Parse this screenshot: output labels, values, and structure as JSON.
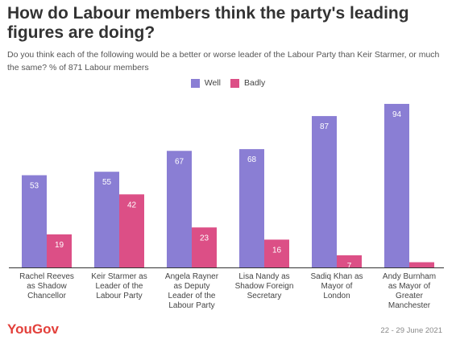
{
  "title": "How do Labour members think the party's leading figures are doing?",
  "subtitle": "Do you think each of the following would be a better or worse leader of the Labour Party than Keir Starmer, or much the same? % of 871 Labour members",
  "legend": [
    {
      "label": "Well",
      "color": "#8a7ed4"
    },
    {
      "label": "Badly",
      "color": "#dc4f86"
    }
  ],
  "footer": {
    "brand": "YouGov",
    "date": "22 - 29 June 2021"
  },
  "chart_data": {
    "type": "bar",
    "categories": [
      [
        "Rachel Reeves",
        "as Shadow",
        "Chancellor"
      ],
      [
        "Keir Starmer as",
        "Leader of the",
        "Labour Party"
      ],
      [
        "Angela Rayner",
        "as Deputy",
        "Leader of the",
        "Labour Party"
      ],
      [
        "Lisa Nandy as",
        "Shadow Foreign",
        "Secretary"
      ],
      [
        "Sadiq Khan as",
        "Mayor of",
        "London"
      ],
      [
        "Andy Burnham",
        "as Mayor of",
        "Greater",
        "Manchester"
      ]
    ],
    "series": [
      {
        "name": "Well",
        "values": [
          53,
          55,
          67,
          68,
          87,
          94
        ],
        "color": "#8a7ed4"
      },
      {
        "name": "Badly",
        "values": [
          19,
          42,
          23,
          16,
          7,
          3
        ],
        "color": "#dc4f86"
      }
    ],
    "ylim": [
      0,
      100
    ],
    "grid": false,
    "legend_position": "top-center"
  }
}
